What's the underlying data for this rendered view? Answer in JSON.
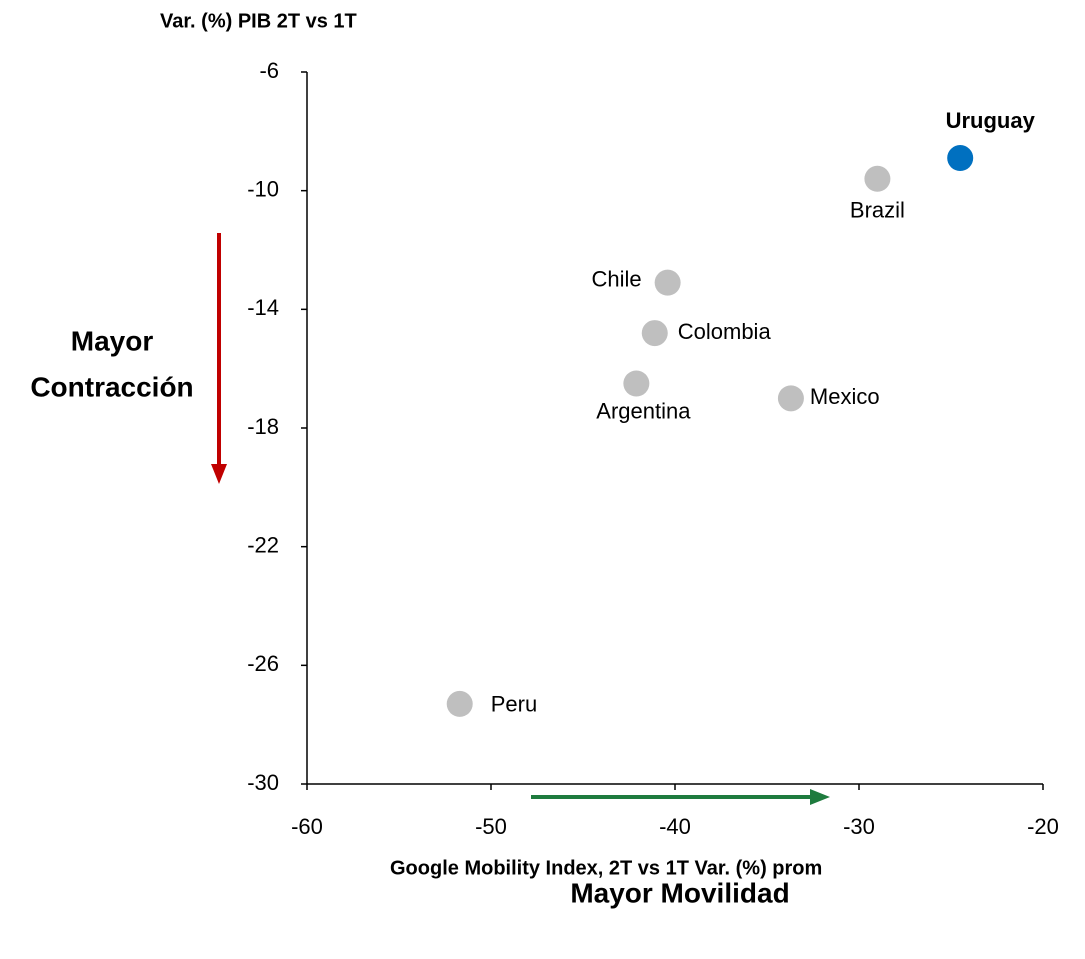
{
  "chart_data": {
    "type": "scatter",
    "y_axis_title": "Var. (%) PIB 2T vs 1T",
    "x_axis_title": "Google Mobility Index, 2T vs 1T Var. (%) prom",
    "points": [
      {
        "name": "Uruguay",
        "x": -24.5,
        "y": -8.9,
        "color": "#0070c0"
      },
      {
        "name": "Brazil",
        "x": -29.0,
        "y": -9.6,
        "color": "#bfbfbf"
      },
      {
        "name": "Chile",
        "x": -40.4,
        "y": -13.1,
        "color": "#bfbfbf"
      },
      {
        "name": "Colombia",
        "x": -41.1,
        "y": -14.8,
        "color": "#bfbfbf"
      },
      {
        "name": "Argentina",
        "x": -42.1,
        "y": -16.5,
        "color": "#bfbfbf"
      },
      {
        "name": "Mexico",
        "x": -33.7,
        "y": -17.0,
        "color": "#bfbfbf"
      },
      {
        "name": "Peru",
        "x": -51.7,
        "y": -27.3,
        "color": "#bfbfbf"
      }
    ],
    "highlight_color": "#0070c0",
    "xlim": [
      -60,
      -20
    ],
    "xticks": [
      -60,
      -50,
      -40,
      -30,
      -20
    ],
    "ylim": [
      -30,
      -6
    ],
    "yticks": [
      -30,
      -26,
      -22,
      -18,
      -14,
      -10,
      -6
    ],
    "y_annotation": {
      "lines": [
        "Mayor",
        "Contracción"
      ],
      "color": "#c00000"
    },
    "x_annotation": {
      "text": "Mayor Movilidad",
      "color": "#1e7b3e"
    }
  }
}
